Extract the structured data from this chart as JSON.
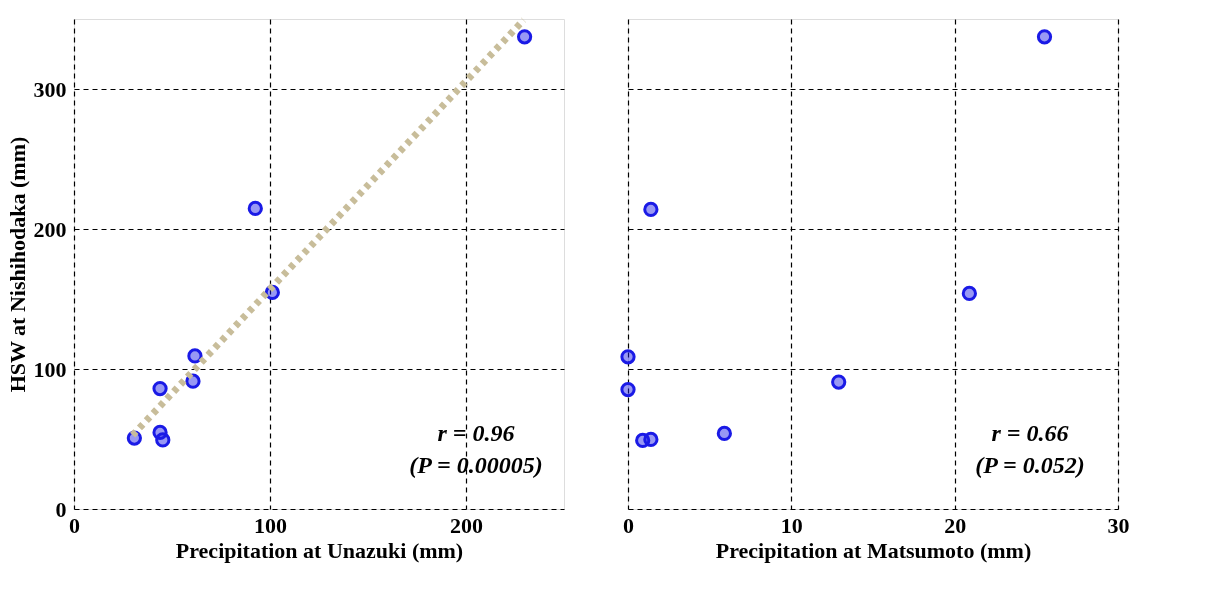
{
  "chart_data": [
    {
      "type": "scatter",
      "xlabel": "Precipitation at Unazuki (mm)",
      "ylabel": "HSW at Nishihodaka (mm)",
      "xlim": [
        0,
        250
      ],
      "xticks": [
        0,
        100,
        200
      ],
      "ylim": [
        0,
        350
      ],
      "yticks": [
        0,
        100,
        200,
        300
      ],
      "grid": true,
      "marker": "circle",
      "series": [
        {
          "color": "#1a1ae6",
          "x": [
            30.8,
            43.9,
            43.9,
            45.3,
            60.7,
            61.7,
            92.5,
            101.2,
            229.9
          ],
          "values": [
            50.7,
            86,
            54.7,
            49.3,
            91.3,
            109.3,
            214.7,
            154.7,
            337.3
          ]
        },
        {
          "type": "line",
          "marker": "none",
          "color": "#c8bd9a",
          "line_style": "dotted",
          "x": [
            29.9,
            229.4
          ],
          "values": [
            52.7,
            349.3
          ]
        }
      ],
      "annotations": [
        "r = 0.96",
        "(P = 0.00005)"
      ]
    },
    {
      "type": "scatter",
      "xlabel": "Precipitation at Matsumoto (mm)",
      "xlim": [
        0,
        30
      ],
      "xticks": [
        0,
        10,
        20,
        30
      ],
      "ylim": [
        0,
        350
      ],
      "yticks": [
        0,
        100,
        200,
        300
      ],
      "grid": true,
      "marker": "circle",
      "tick_labels": "x",
      "series": [
        {
          "color": "#1a1ae6",
          "x": [
            0,
            0,
            0.9,
            1.4,
            1.4,
            5.9,
            12.9,
            20.9,
            25.5
          ],
          "values": [
            108.7,
            85.3,
            49,
            49.7,
            214,
            54,
            90.7,
            154,
            337.3
          ]
        }
      ],
      "annotations": [
        "r = 0.66",
        "(P = 0.052)"
      ]
    }
  ]
}
